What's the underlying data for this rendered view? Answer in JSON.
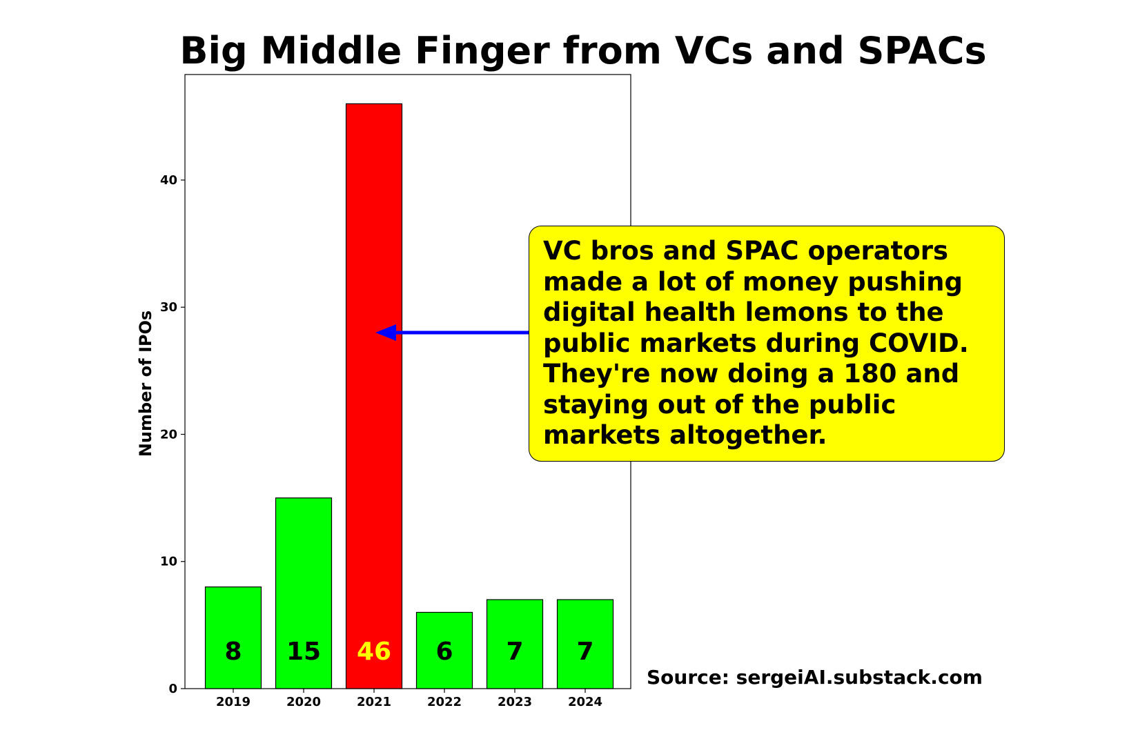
{
  "chart_data": {
    "type": "bar",
    "title": "Big Middle Finger from VCs and SPACs",
    "xlabel": "",
    "ylabel": "Number of IPOs",
    "categories": [
      "2019",
      "2020",
      "2021",
      "2022",
      "2023",
      "2024"
    ],
    "values": [
      8,
      15,
      46,
      6,
      7,
      7
    ],
    "data_labels": [
      "8",
      "15",
      "46",
      "6",
      "7",
      "7"
    ],
    "bar_colors": [
      "#00ff00",
      "#00ff00",
      "#ff0000",
      "#00ff00",
      "#00ff00",
      "#00ff00"
    ],
    "data_label_colors": [
      "#000000",
      "#000000",
      "#ffff00",
      "#000000",
      "#000000",
      "#000000"
    ],
    "ylim": [
      0,
      48.3
    ],
    "yticks": [
      0,
      10,
      20,
      30,
      40
    ],
    "grid": false,
    "annotation": {
      "text": "VC bros and SPAC operators\nmade a lot of money pushing\ndigital health lemons to the\npublic markets during COVID.\nThey're now doing a 180 and\nstaying out of the public\nmarkets altogether.",
      "points_to": {
        "x": "2021",
        "y": 28
      },
      "box_color": "#ffff00",
      "arrow_color": "#0000ff"
    },
    "source_note": "Source: sergeiAI.substack.com"
  }
}
